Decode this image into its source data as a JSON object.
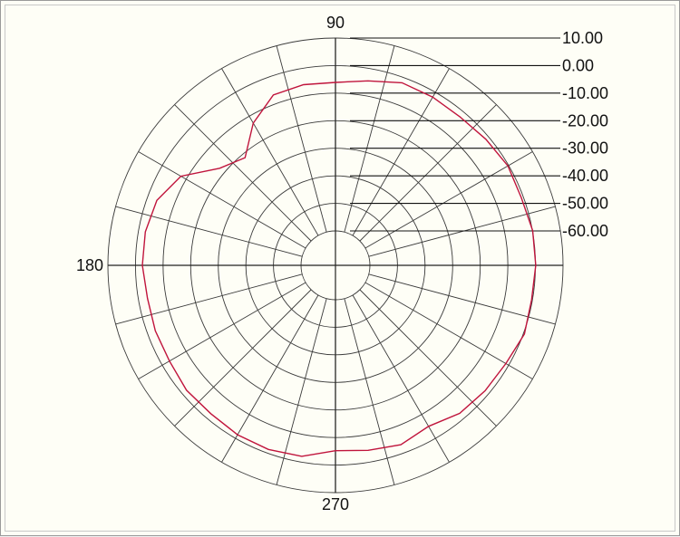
{
  "chart_data": {
    "type": "polar-line",
    "angle_labels": [
      {
        "angle": 90,
        "text": "90"
      },
      {
        "angle": 180,
        "text": "180"
      },
      {
        "angle": 270,
        "text": "270"
      }
    ],
    "radial_tick_labels": [
      "10.00",
      "0.00",
      "-10.00",
      "-20.00",
      "-30.00",
      "-40.00",
      "-50.00",
      "-60.00"
    ],
    "rlim": [
      -60,
      10
    ],
    "radial_ring_values": [
      -50,
      -40,
      -30,
      -20,
      -10,
      0,
      10
    ],
    "grid": true,
    "series": [
      {
        "color": "#c0143c",
        "angles": [
          0,
          10,
          20,
          30,
          40,
          50,
          60,
          70,
          80,
          90,
          100,
          110,
          120,
          130,
          140,
          150,
          160,
          170,
          180,
          190,
          200,
          210,
          220,
          230,
          240,
          250,
          260,
          270,
          280,
          290,
          300,
          310,
          320,
          330,
          340,
          350
        ],
        "values": [
          -2.5,
          -2.5,
          -3.6,
          -7.8,
          -17.7,
          -21.5,
          -12.9,
          -6.7,
          -5.9,
          -6.1,
          -4.5,
          -2.0,
          -2.0,
          -2.2,
          -1.3,
          -0.3,
          -0.8,
          0.1,
          0.1,
          -0.3,
          0.4,
          -1.2,
          -1.7,
          -2.4,
          -5.0,
          -3.2,
          -4.3,
          -5.2,
          -2.1,
          -1.4,
          -1.5,
          -2.2,
          -2.0,
          -3.0,
          -3.0,
          -3.3
        ]
      }
    ]
  }
}
